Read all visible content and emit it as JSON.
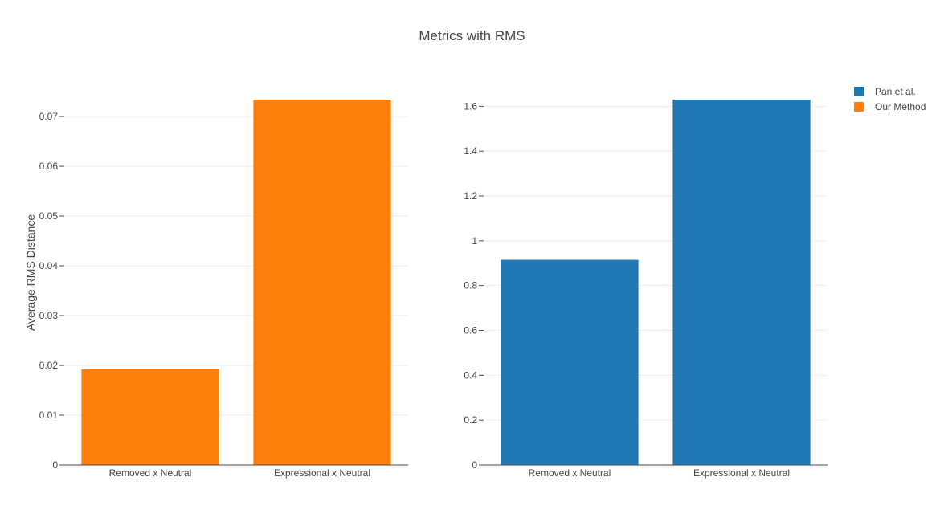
{
  "title": "Metrics with RMS",
  "legend": [
    {
      "name": "Pan et al.",
      "color": "#1f77b4"
    },
    {
      "name": "Our Method",
      "color": "#ff7f0e"
    }
  ],
  "chart_data": [
    {
      "type": "bar",
      "categories": [
        "Removed x Neutral",
        "Expressional x Neutral"
      ],
      "series": [
        {
          "name": "Our Method",
          "values": [
            0.0192,
            0.0734
          ],
          "color": "#ff7f0e"
        }
      ],
      "ylabel": "Average RMS Distance",
      "xlabel": "",
      "ylim": [
        0,
        0.0734
      ],
      "yticks": [
        0,
        0.01,
        0.02,
        0.03,
        0.04,
        0.05,
        0.06,
        0.07
      ],
      "ytick_labels": [
        "0",
        "0.01",
        "0.02",
        "0.03",
        "0.04",
        "0.05",
        "0.06",
        "0.07"
      ],
      "grid": true
    },
    {
      "type": "bar",
      "categories": [
        "Removed x Neutral",
        "Expressional x Neutral"
      ],
      "series": [
        {
          "name": "Pan et al.",
          "values": [
            0.915,
            1.63
          ],
          "color": "#1f77b4"
        }
      ],
      "ylabel": "",
      "xlabel": "",
      "ylim": [
        0,
        1.63
      ],
      "yticks": [
        0,
        0.2,
        0.4,
        0.6,
        0.8,
        1,
        1.2,
        1.4,
        1.6
      ],
      "ytick_labels": [
        "0",
        "0.2",
        "0.4",
        "0.6",
        "0.8",
        "1",
        "1.2",
        "1.4",
        "1.6"
      ],
      "grid": true
    }
  ],
  "legend_position": "top-right"
}
